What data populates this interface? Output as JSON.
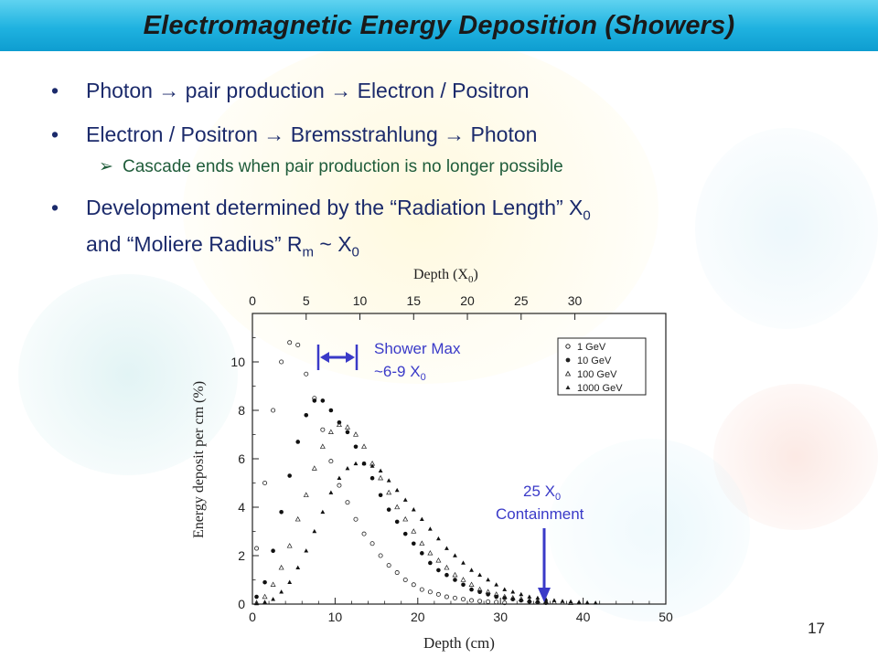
{
  "slide": {
    "title": "Electromagnetic Energy Deposition (Showers)",
    "page_number": "17"
  },
  "bullets": [
    {
      "text": "Photon → pair production → Electron / Positron"
    },
    {
      "text": "Electron / Positron → Bremsstrahlung → Photon"
    },
    {
      "sub": "Cascade ends when pair production is no longer possible"
    },
    {
      "line1_pre": "Development determined by the “Radiation Length” X",
      "line1_sub": "0",
      "line2_pre": "and “Moliere Radius” R",
      "line2_sub1": "m",
      "line2_mid": " ~ X",
      "line2_sub2": "0"
    }
  ],
  "annotations": {
    "shower_max_line1": "Shower Max",
    "shower_max_line2": "~6-9 X",
    "shower_max_sub": "0",
    "containment_line1": "25 X",
    "containment_sub": "0",
    "containment_line2": "Containment"
  },
  "chart_data": {
    "type": "scatter",
    "xlabel": "Depth  (cm)",
    "top_xlabel": "Depth  (X",
    "top_xlabel_sub": "0",
    "ylabel": "Energy  deposit  per  cm  (%)",
    "xlim": [
      0,
      50
    ],
    "ylim": [
      0,
      12
    ],
    "x_ticks": [
      "0",
      "10",
      "20",
      "30",
      "40",
      "50"
    ],
    "top_ticks": [
      "0",
      "5",
      "10",
      "15",
      "20",
      "25",
      "30"
    ],
    "y_ticks": [
      "0",
      "2",
      "4",
      "6",
      "8",
      "10"
    ],
    "legend_position": "top-right",
    "series": [
      {
        "name": "1 GeV",
        "marker": "open-circle",
        "x": [
          0.5,
          1.5,
          2.5,
          3.5,
          4.5,
          5.5,
          6.5,
          7.5,
          8.5,
          9.5,
          10.5,
          11.5,
          12.5,
          13.5,
          14.5,
          15.5,
          16.5,
          17.5,
          18.5,
          19.5,
          20.5,
          21.5,
          22.5,
          23.5,
          24.5,
          25.5,
          26.5,
          27.5,
          28.5,
          29.5,
          30.5
        ],
        "y": [
          2.3,
          5.0,
          8.0,
          10.0,
          10.8,
          10.7,
          9.5,
          8.5,
          7.2,
          5.9,
          4.9,
          4.2,
          3.5,
          2.9,
          2.5,
          2.0,
          1.6,
          1.3,
          1.0,
          0.8,
          0.6,
          0.5,
          0.4,
          0.3,
          0.25,
          0.2,
          0.15,
          0.12,
          0.1,
          0.08,
          0.05
        ]
      },
      {
        "name": "10 GeV",
        "marker": "filled-circle",
        "x": [
          0.5,
          1.5,
          2.5,
          3.5,
          4.5,
          5.5,
          6.5,
          7.5,
          8.5,
          9.5,
          10.5,
          11.5,
          12.5,
          13.5,
          14.5,
          15.5,
          16.5,
          17.5,
          18.5,
          19.5,
          20.5,
          21.5,
          22.5,
          23.5,
          24.5,
          25.5,
          26.5,
          27.5,
          28.5,
          29.5,
          30.5,
          31.5,
          32.5,
          33.5,
          34.5,
          35.5
        ],
        "y": [
          0.3,
          0.9,
          2.2,
          3.8,
          5.3,
          6.7,
          7.8,
          8.4,
          8.4,
          8.0,
          7.5,
          7.1,
          6.5,
          5.8,
          5.2,
          4.5,
          3.9,
          3.4,
          2.9,
          2.5,
          2.1,
          1.7,
          1.4,
          1.2,
          1.0,
          0.8,
          0.6,
          0.5,
          0.4,
          0.3,
          0.25,
          0.2,
          0.15,
          0.1,
          0.08,
          0.05
        ]
      },
      {
        "name": "100 GeV",
        "marker": "open-triangle",
        "x": [
          0.5,
          1.5,
          2.5,
          3.5,
          4.5,
          5.5,
          6.5,
          7.5,
          8.5,
          9.5,
          10.5,
          11.5,
          12.5,
          13.5,
          14.5,
          15.5,
          16.5,
          17.5,
          18.5,
          19.5,
          20.5,
          21.5,
          22.5,
          23.5,
          24.5,
          25.5,
          26.5,
          27.5,
          28.5,
          29.5,
          30.5,
          31.5,
          32.5,
          33.5,
          34.5,
          35.5,
          36.5,
          37.5,
          38.5
        ],
        "y": [
          0.05,
          0.3,
          0.8,
          1.5,
          2.4,
          3.5,
          4.5,
          5.6,
          6.5,
          7.1,
          7.4,
          7.3,
          7.0,
          6.5,
          5.8,
          5.2,
          4.6,
          4.0,
          3.5,
          3.0,
          2.5,
          2.1,
          1.8,
          1.5,
          1.2,
          1.0,
          0.8,
          0.6,
          0.5,
          0.4,
          0.3,
          0.25,
          0.2,
          0.15,
          0.12,
          0.1,
          0.08,
          0.06,
          0.05
        ]
      },
      {
        "name": "1000 GeV",
        "marker": "filled-triangle",
        "x": [
          0.5,
          1.5,
          2.5,
          3.5,
          4.5,
          5.5,
          6.5,
          7.5,
          8.5,
          9.5,
          10.5,
          11.5,
          12.5,
          13.5,
          14.5,
          15.5,
          16.5,
          17.5,
          18.5,
          19.5,
          20.5,
          21.5,
          22.5,
          23.5,
          24.5,
          25.5,
          26.5,
          27.5,
          28.5,
          29.5,
          30.5,
          31.5,
          32.5,
          33.5,
          34.5,
          35.5,
          36.5,
          37.5,
          38.5,
          39.5,
          40.5,
          41.5
        ],
        "y": [
          0.02,
          0.08,
          0.2,
          0.5,
          0.9,
          1.5,
          2.2,
          3.0,
          3.8,
          4.6,
          5.2,
          5.6,
          5.8,
          5.8,
          5.7,
          5.5,
          5.1,
          4.7,
          4.3,
          3.9,
          3.5,
          3.1,
          2.7,
          2.3,
          2.0,
          1.7,
          1.4,
          1.2,
          1.0,
          0.8,
          0.6,
          0.5,
          0.4,
          0.3,
          0.25,
          0.2,
          0.15,
          0.12,
          0.1,
          0.08,
          0.06,
          0.05
        ]
      }
    ]
  }
}
